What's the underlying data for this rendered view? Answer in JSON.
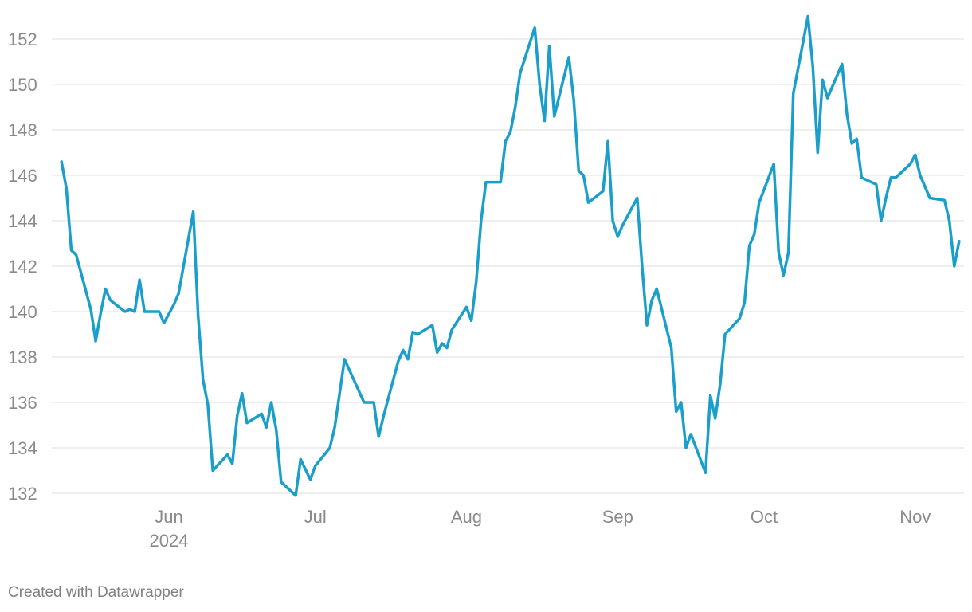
{
  "footer": {
    "credit": "Created with Datawrapper"
  },
  "colors": {
    "line": "#1a9fcb",
    "grid": "#dcdcdc",
    "label": "#8a8a8a"
  },
  "chart_data": {
    "type": "line",
    "title": "",
    "xlabel": "",
    "ylabel": "",
    "ylim": [
      132,
      152
    ],
    "yticks": [
      132,
      134,
      136,
      138,
      140,
      142,
      144,
      146,
      148,
      150,
      152
    ],
    "xlim": [
      "2024-05-08",
      "2024-11-11"
    ],
    "xticks": [
      {
        "date": "2024-06-01",
        "label": "Jun",
        "sublabel": "2024"
      },
      {
        "date": "2024-07-01",
        "label": "Jul",
        "sublabel": ""
      },
      {
        "date": "2024-08-01",
        "label": "Aug",
        "sublabel": ""
      },
      {
        "date": "2024-09-01",
        "label": "Sep",
        "sublabel": ""
      },
      {
        "date": "2024-10-01",
        "label": "Oct",
        "sublabel": ""
      },
      {
        "date": "2024-11-01",
        "label": "Nov",
        "sublabel": ""
      }
    ],
    "grid": true,
    "legend": "none",
    "series": [
      {
        "color": "#1a9fcb",
        "points": [
          [
            "2024-05-10",
            146.6
          ],
          [
            "2024-05-11",
            145.4
          ],
          [
            "2024-05-12",
            142.7
          ],
          [
            "2024-05-13",
            142.5
          ],
          [
            "2024-05-16",
            140.1
          ],
          [
            "2024-05-17",
            138.7
          ],
          [
            "2024-05-18",
            139.9
          ],
          [
            "2024-05-19",
            141.0
          ],
          [
            "2024-05-20",
            140.5
          ],
          [
            "2024-05-23",
            140.0
          ],
          [
            "2024-05-24",
            140.1
          ],
          [
            "2024-05-25",
            140.0
          ],
          [
            "2024-05-26",
            141.4
          ],
          [
            "2024-05-27",
            140.0
          ],
          [
            "2024-05-30",
            140.0
          ],
          [
            "2024-05-31",
            139.5
          ],
          [
            "2024-06-02",
            140.3
          ],
          [
            "2024-06-03",
            140.8
          ],
          [
            "2024-06-06",
            144.4
          ],
          [
            "2024-06-07",
            139.8
          ],
          [
            "2024-06-08",
            137.0
          ],
          [
            "2024-06-09",
            135.9
          ],
          [
            "2024-06-10",
            133.0
          ],
          [
            "2024-06-13",
            133.7
          ],
          [
            "2024-06-14",
            133.3
          ],
          [
            "2024-06-15",
            135.4
          ],
          [
            "2024-06-16",
            136.4
          ],
          [
            "2024-06-17",
            135.1
          ],
          [
            "2024-06-20",
            135.5
          ],
          [
            "2024-06-21",
            134.9
          ],
          [
            "2024-06-22",
            136.0
          ],
          [
            "2024-06-23",
            134.8
          ],
          [
            "2024-06-24",
            132.5
          ],
          [
            "2024-06-27",
            131.9
          ],
          [
            "2024-06-28",
            133.5
          ],
          [
            "2024-06-30",
            132.6
          ],
          [
            "2024-07-01",
            133.2
          ],
          [
            "2024-07-04",
            134.0
          ],
          [
            "2024-07-05",
            134.9
          ],
          [
            "2024-07-07",
            137.9
          ],
          [
            "2024-07-11",
            136.0
          ],
          [
            "2024-07-13",
            136.0
          ],
          [
            "2024-07-14",
            134.5
          ],
          [
            "2024-07-15",
            135.4
          ],
          [
            "2024-07-18",
            137.8
          ],
          [
            "2024-07-19",
            138.3
          ],
          [
            "2024-07-20",
            137.9
          ],
          [
            "2024-07-21",
            139.1
          ],
          [
            "2024-07-22",
            139.0
          ],
          [
            "2024-07-25",
            139.4
          ],
          [
            "2024-07-26",
            138.2
          ],
          [
            "2024-07-27",
            138.6
          ],
          [
            "2024-07-28",
            138.4
          ],
          [
            "2024-07-29",
            139.2
          ],
          [
            "2024-08-01",
            140.2
          ],
          [
            "2024-08-02",
            139.6
          ],
          [
            "2024-08-03",
            141.3
          ],
          [
            "2024-08-04",
            144.0
          ],
          [
            "2024-08-05",
            145.7
          ],
          [
            "2024-08-08",
            145.7
          ],
          [
            "2024-08-09",
            147.5
          ],
          [
            "2024-08-10",
            147.9
          ],
          [
            "2024-08-11",
            149.0
          ],
          [
            "2024-08-12",
            150.5
          ],
          [
            "2024-08-15",
            152.5
          ],
          [
            "2024-08-16",
            150.0
          ],
          [
            "2024-08-17",
            148.4
          ],
          [
            "2024-08-18",
            151.7
          ],
          [
            "2024-08-19",
            148.6
          ],
          [
            "2024-08-22",
            151.2
          ],
          [
            "2024-08-23",
            149.3
          ],
          [
            "2024-08-24",
            146.2
          ],
          [
            "2024-08-25",
            146.0
          ],
          [
            "2024-08-26",
            144.8
          ],
          [
            "2024-08-29",
            145.3
          ],
          [
            "2024-08-30",
            147.5
          ],
          [
            "2024-08-31",
            144.0
          ],
          [
            "2024-09-01",
            143.3
          ],
          [
            "2024-09-02",
            143.8
          ],
          [
            "2024-09-05",
            145.0
          ],
          [
            "2024-09-06",
            142.0
          ],
          [
            "2024-09-07",
            139.4
          ],
          [
            "2024-09-08",
            140.5
          ],
          [
            "2024-09-09",
            141.0
          ],
          [
            "2024-09-12",
            138.4
          ],
          [
            "2024-09-13",
            135.6
          ],
          [
            "2024-09-14",
            136.0
          ],
          [
            "2024-09-15",
            134.0
          ],
          [
            "2024-09-16",
            134.6
          ],
          [
            "2024-09-19",
            132.9
          ],
          [
            "2024-09-20",
            136.3
          ],
          [
            "2024-09-21",
            135.3
          ],
          [
            "2024-09-22",
            136.8
          ],
          [
            "2024-09-23",
            139.0
          ],
          [
            "2024-09-26",
            139.7
          ],
          [
            "2024-09-27",
            140.4
          ],
          [
            "2024-09-28",
            142.9
          ],
          [
            "2024-09-29",
            143.4
          ],
          [
            "2024-09-30",
            144.8
          ],
          [
            "2024-10-03",
            146.5
          ],
          [
            "2024-10-04",
            142.6
          ],
          [
            "2024-10-05",
            141.6
          ],
          [
            "2024-10-06",
            142.6
          ],
          [
            "2024-10-07",
            149.6
          ],
          [
            "2024-10-10",
            153.0
          ],
          [
            "2024-10-11",
            150.8
          ],
          [
            "2024-10-12",
            147.0
          ],
          [
            "2024-10-13",
            150.2
          ],
          [
            "2024-10-14",
            149.4
          ],
          [
            "2024-10-17",
            150.9
          ],
          [
            "2024-10-18",
            148.7
          ],
          [
            "2024-10-19",
            147.4
          ],
          [
            "2024-10-20",
            147.6
          ],
          [
            "2024-10-21",
            145.9
          ],
          [
            "2024-10-24",
            145.6
          ],
          [
            "2024-10-25",
            144.0
          ],
          [
            "2024-10-26",
            145.0
          ],
          [
            "2024-10-27",
            145.9
          ],
          [
            "2024-10-28",
            145.9
          ],
          [
            "2024-10-31",
            146.5
          ],
          [
            "2024-11-01",
            146.9
          ],
          [
            "2024-11-02",
            146.0
          ],
          [
            "2024-11-04",
            145.0
          ],
          [
            "2024-11-07",
            144.9
          ],
          [
            "2024-11-08",
            144.0
          ],
          [
            "2024-11-09",
            142.0
          ],
          [
            "2024-11-10",
            143.1
          ]
        ]
      }
    ]
  }
}
